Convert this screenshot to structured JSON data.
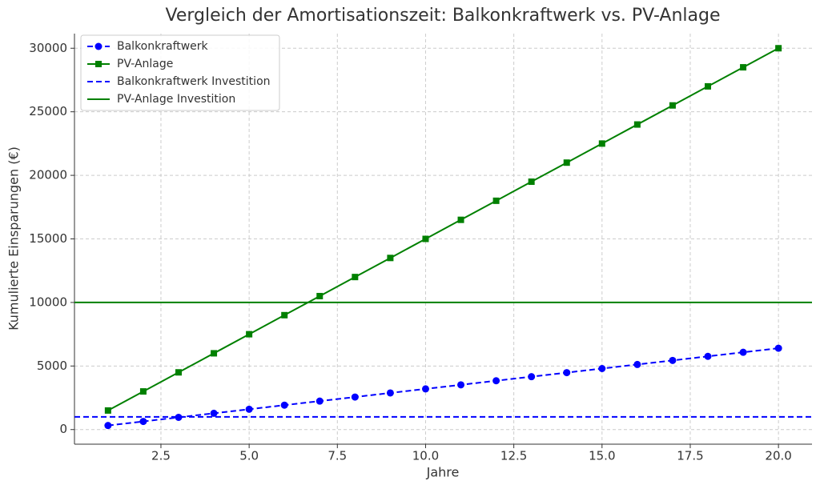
{
  "chart_data": {
    "type": "line",
    "title": "Vergleich der Amortisationszeit: Balkonkraftwerk vs. PV-Anlage",
    "xlabel": "Jahre",
    "ylabel": "Kumulierte Einsparungen (€)",
    "x": [
      1,
      2,
      3,
      4,
      5,
      6,
      7,
      8,
      9,
      10,
      11,
      12,
      13,
      14,
      15,
      16,
      17,
      18,
      19,
      20
    ],
    "series": [
      {
        "name": "Balkonkraftwerk",
        "color": "#0000ff",
        "linestyle": "dashed",
        "marker": "circle",
        "values": [
          320,
          640,
          960,
          1280,
          1600,
          1920,
          2240,
          2560,
          2880,
          3200,
          3520,
          3840,
          4160,
          4480,
          4800,
          5120,
          5440,
          5760,
          6080,
          6400
        ]
      },
      {
        "name": "PV-Anlage",
        "color": "#008000",
        "linestyle": "solid",
        "marker": "square",
        "values": [
          1500,
          3000,
          4500,
          6000,
          7500,
          9000,
          10500,
          12000,
          13500,
          15000,
          16500,
          18000,
          19500,
          21000,
          22500,
          24000,
          25500,
          27000,
          28500,
          30000
        ]
      }
    ],
    "hlines": [
      {
        "name": "Balkonkraftwerk Investition",
        "color": "#0000ff",
        "linestyle": "dashed",
        "value": 1000
      },
      {
        "name": "PV-Anlage Investition",
        "color": "#008000",
        "linestyle": "solid",
        "value": 10000
      }
    ],
    "xlim": [
      0.05,
      20.95
    ],
    "ylim": [
      -1150,
      31150
    ],
    "xticks": [
      2.5,
      {
        "value": 5,
        "label": "5.0"
      },
      7.5,
      {
        "value": 10,
        "label": "10.0"
      },
      12.5,
      {
        "value": 15,
        "label": "15.0"
      },
      17.5,
      {
        "value": 20,
        "label": "20.0"
      }
    ],
    "yticks": [
      0,
      5000,
      10000,
      15000,
      20000,
      25000,
      30000
    ],
    "grid": true,
    "legend": "upper left"
  }
}
